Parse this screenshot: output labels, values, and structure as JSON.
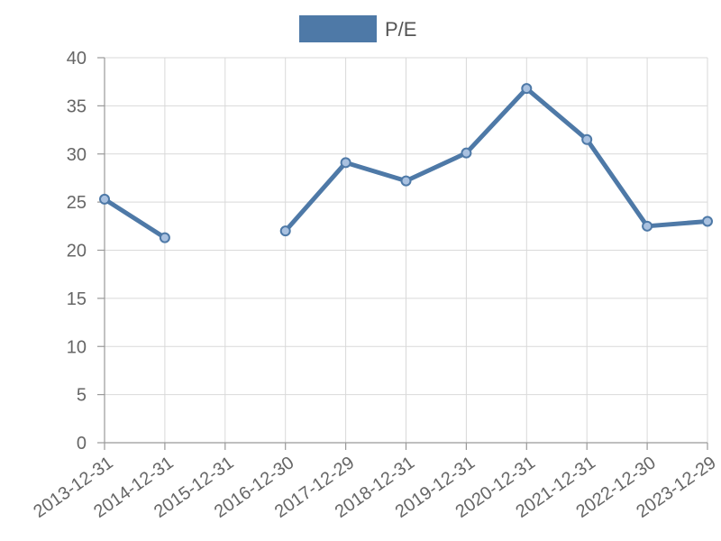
{
  "chart_data": {
    "type": "line",
    "categories": [
      "2013-12-31",
      "2014-12-31",
      "2015-12-31",
      "2016-12-30",
      "2017-12-29",
      "2018-12-31",
      "2019-12-31",
      "2020-12-31",
      "2021-12-31",
      "2022-12-30",
      "2023-12-29"
    ],
    "series": [
      {
        "name": "P/E",
        "color": "#4e79a7",
        "values": [
          25.3,
          21.3,
          null,
          22.0,
          29.1,
          27.2,
          30.1,
          36.8,
          31.5,
          22.5,
          23.0
        ]
      }
    ],
    "ylim": [
      0,
      40
    ],
    "yticks": [
      0,
      5,
      10,
      15,
      20,
      25,
      30,
      35,
      40
    ],
    "grid": true,
    "legend_position": "top-center"
  }
}
